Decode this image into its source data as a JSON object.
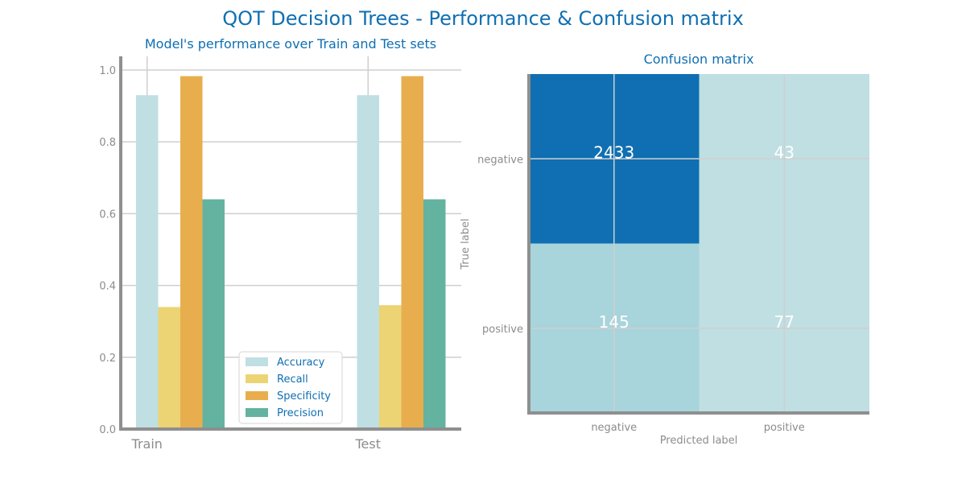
{
  "title": "QOT Decision Trees - Performance & Confusion matrix",
  "chart_data": [
    {
      "type": "bar",
      "title": "Model's performance over Train and Test sets",
      "categories": [
        "Train",
        "Test"
      ],
      "series": [
        {
          "name": "Accuracy",
          "values": [
            0.93,
            0.93
          ],
          "color": "#bfdfe3"
        },
        {
          "name": "Recall",
          "values": [
            0.34,
            0.345
          ],
          "color": "#ecd474"
        },
        {
          "name": "Specificity",
          "values": [
            0.983,
            0.983
          ],
          "color": "#e8ae4e"
        },
        {
          "name": "Precision",
          "values": [
            0.64,
            0.64
          ],
          "color": "#63b3a0"
        }
      ],
      "ylim": [
        0,
        1.0
      ],
      "yticks": [
        "0.0",
        "0.2",
        "0.4",
        "0.6",
        "0.8",
        "1.0"
      ],
      "grid": true,
      "legend": "lower-center"
    },
    {
      "type": "heatmap",
      "title": "Confusion matrix",
      "xlabel": "Predicted label",
      "ylabel": "True label",
      "x_categories": [
        "negative",
        "positive"
      ],
      "y_categories": [
        "negative",
        "positive"
      ],
      "values": [
        [
          2433,
          43
        ],
        [
          145,
          77
        ]
      ],
      "colors": {
        "high": "#0f6fb2",
        "mid": "#a8d4dc",
        "low": "#bfdfe3"
      },
      "grid": true
    }
  ]
}
